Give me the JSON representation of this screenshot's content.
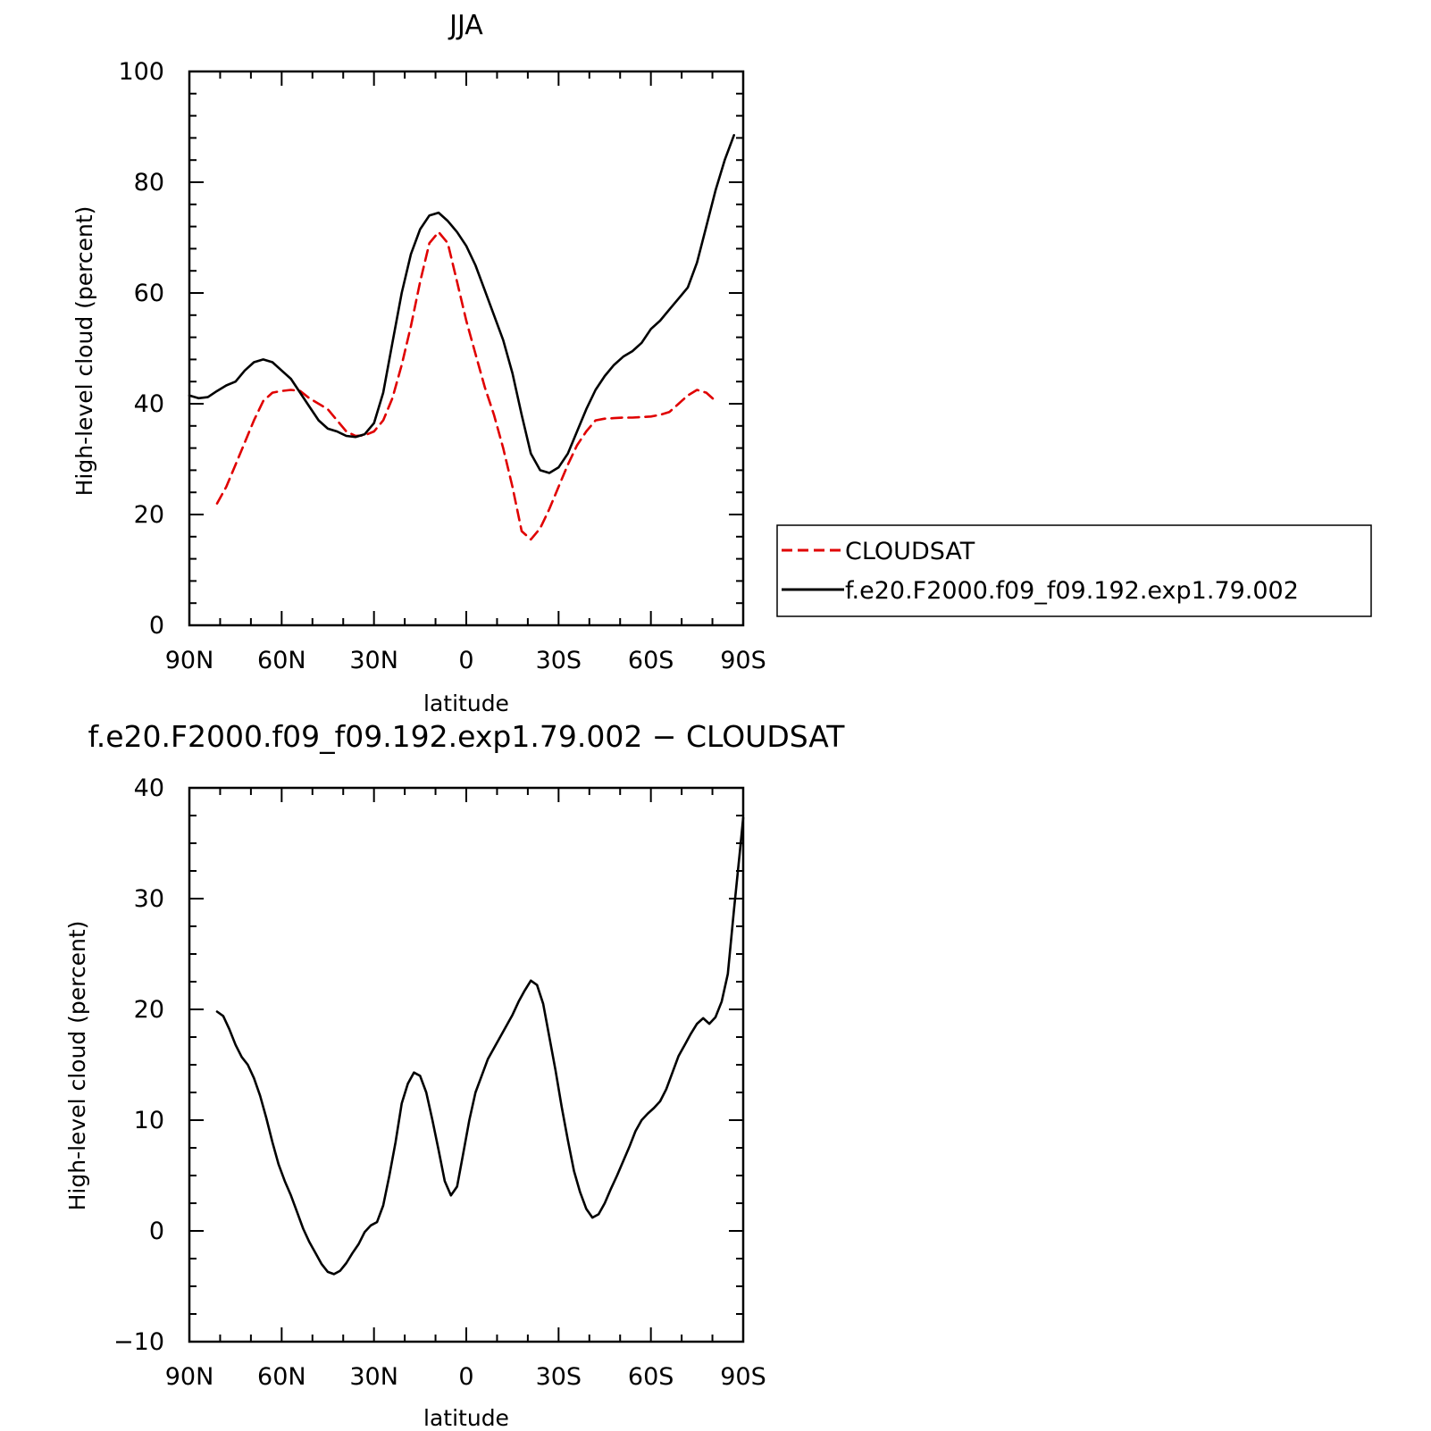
{
  "chart_data": [
    {
      "type": "line",
      "title": "JJA",
      "xlabel": "latitude",
      "ylabel": "High-level cloud (percent)",
      "xlim": [
        90,
        -90
      ],
      "ylim": [
        0,
        100
      ],
      "x_ticks": [
        90,
        60,
        30,
        0,
        -30,
        -60,
        -90
      ],
      "x_tick_labels": [
        "90N",
        "60N",
        "30N",
        "0",
        "30S",
        "60S",
        "90S"
      ],
      "y_ticks": [
        0,
        20,
        40,
        60,
        80,
        100
      ],
      "y_tick_labels": [
        "0",
        "20",
        "40",
        "60",
        "80",
        "100"
      ],
      "legend_position": "outside-right",
      "series": [
        {
          "name": "CLOUDSAT",
          "color": "#e00000",
          "dash": "dashed",
          "points": [
            [
              81,
              22
            ],
            [
              78,
              25
            ],
            [
              75,
              29
            ],
            [
              72,
              33
            ],
            [
              69,
              37
            ],
            [
              66,
              40.5
            ],
            [
              63,
              42
            ],
            [
              60,
              42.3
            ],
            [
              57,
              42.5
            ],
            [
              54,
              42.3
            ],
            [
              51,
              41
            ],
            [
              48,
              40
            ],
            [
              45,
              39
            ],
            [
              42,
              37
            ],
            [
              39,
              35
            ],
            [
              36,
              34.2
            ],
            [
              33,
              34.3
            ],
            [
              30,
              35
            ],
            [
              27,
              37
            ],
            [
              24,
              41
            ],
            [
              21,
              47
            ],
            [
              18,
              54
            ],
            [
              15,
              62
            ],
            [
              12,
              69
            ],
            [
              9,
              71
            ],
            [
              6,
              69
            ],
            [
              3,
              62
            ],
            [
              0,
              55
            ],
            [
              -3,
              49
            ],
            [
              -6,
              43
            ],
            [
              -9,
              38
            ],
            [
              -12,
              32
            ],
            [
              -15,
              25
            ],
            [
              -18,
              17
            ],
            [
              -21,
              15.5
            ],
            [
              -24,
              17.5
            ],
            [
              -27,
              21
            ],
            [
              -30,
              25
            ],
            [
              -33,
              29
            ],
            [
              -36,
              32.5
            ],
            [
              -39,
              35
            ],
            [
              -42,
              37
            ],
            [
              -45,
              37.3
            ],
            [
              -48,
              37.4
            ],
            [
              -51,
              37.5
            ],
            [
              -54,
              37.5
            ],
            [
              -57,
              37.6
            ],
            [
              -60,
              37.7
            ],
            [
              -63,
              38
            ],
            [
              -66,
              38.5
            ],
            [
              -69,
              40
            ],
            [
              -72,
              41.5
            ],
            [
              -75,
              42.5
            ],
            [
              -78,
              42
            ],
            [
              -81,
              40.5
            ]
          ]
        },
        {
          "name": "f.e20.F2000.f09_f09.192.exp1.79.002",
          "color": "#000000",
          "dash": "solid",
          "points": [
            [
              90,
              41.5
            ],
            [
              87,
              41
            ],
            [
              84,
              41.2
            ],
            [
              81,
              42.3
            ],
            [
              78,
              43.3
            ],
            [
              75,
              44
            ],
            [
              72,
              46
            ],
            [
              69,
              47.5
            ],
            [
              66,
              48
            ],
            [
              63,
              47.5
            ],
            [
              60,
              46
            ],
            [
              57,
              44.5
            ],
            [
              54,
              42
            ],
            [
              51,
              39.5
            ],
            [
              48,
              37
            ],
            [
              45,
              35.5
            ],
            [
              42,
              35
            ],
            [
              39,
              34.2
            ],
            [
              36,
              34
            ],
            [
              33,
              34.5
            ],
            [
              30,
              36.5
            ],
            [
              27,
              42
            ],
            [
              24,
              51
            ],
            [
              21,
              60
            ],
            [
              18,
              67
            ],
            [
              15,
              71.5
            ],
            [
              12,
              74
            ],
            [
              9,
              74.5
            ],
            [
              6,
              73
            ],
            [
              3,
              71
            ],
            [
              0,
              68.5
            ],
            [
              -3,
              65
            ],
            [
              -6,
              60.5
            ],
            [
              -9,
              56
            ],
            [
              -12,
              51.5
            ],
            [
              -15,
              45.5
            ],
            [
              -18,
              38
            ],
            [
              -21,
              31
            ],
            [
              -24,
              28
            ],
            [
              -27,
              27.5
            ],
            [
              -30,
              28.5
            ],
            [
              -33,
              31
            ],
            [
              -36,
              35
            ],
            [
              -39,
              39
            ],
            [
              -42,
              42.5
            ],
            [
              -45,
              45
            ],
            [
              -48,
              47
            ],
            [
              -51,
              48.5
            ],
            [
              -54,
              49.5
            ],
            [
              -57,
              51
            ],
            [
              -60,
              53.5
            ],
            [
              -63,
              55
            ],
            [
              -66,
              57
            ],
            [
              -69,
              59
            ],
            [
              -72,
              61
            ],
            [
              -75,
              65.5
            ],
            [
              -78,
              72
            ],
            [
              -81,
              78.5
            ],
            [
              -84,
              84
            ],
            [
              -87,
              88.5
            ]
          ]
        }
      ]
    },
    {
      "type": "line",
      "title": "f.e20.F2000.f09_f09.192.exp1.79.002 − CLOUDSAT",
      "xlabel": "latitude",
      "ylabel": "High-level cloud (percent)",
      "xlim": [
        90,
        -90
      ],
      "ylim": [
        -10,
        40
      ],
      "x_ticks": [
        90,
        60,
        30,
        0,
        -30,
        -60,
        -90
      ],
      "x_tick_labels": [
        "90N",
        "60N",
        "30N",
        "0",
        "30S",
        "60S",
        "90S"
      ],
      "y_ticks": [
        -10,
        0,
        10,
        20,
        30,
        40
      ],
      "y_tick_labels": [
        "−10",
        "0",
        "10",
        "20",
        "30",
        "40"
      ],
      "series": [
        {
          "color": "#000000",
          "dash": "solid",
          "points": [
            [
              81,
              19.8
            ],
            [
              79,
              19.4
            ],
            [
              77,
              18.2
            ],
            [
              75,
              16.8
            ],
            [
              73,
              15.7
            ],
            [
              71,
              15
            ],
            [
              69,
              13.8
            ],
            [
              67,
              12.2
            ],
            [
              65,
              10.2
            ],
            [
              63,
              8
            ],
            [
              61,
              6
            ],
            [
              59,
              4.5
            ],
            [
              57,
              3.2
            ],
            [
              55,
              1.7
            ],
            [
              53,
              0.2
            ],
            [
              51,
              -1
            ],
            [
              49,
              -2
            ],
            [
              47,
              -3
            ],
            [
              45,
              -3.7
            ],
            [
              43,
              -3.9
            ],
            [
              41,
              -3.6
            ],
            [
              39,
              -2.9
            ],
            [
              37,
              -2
            ],
            [
              35,
              -1.2
            ],
            [
              33,
              -0.1
            ],
            [
              31,
              0.5
            ],
            [
              29,
              0.8
            ],
            [
              27,
              2.3
            ],
            [
              25,
              5
            ],
            [
              23,
              8
            ],
            [
              21,
              11.5
            ],
            [
              19,
              13.3
            ],
            [
              17,
              14.3
            ],
            [
              15,
              14
            ],
            [
              13,
              12.5
            ],
            [
              11,
              10
            ],
            [
              9,
              7.3
            ],
            [
              7,
              4.5
            ],
            [
              5,
              3.2
            ],
            [
              3,
              4
            ],
            [
              1,
              7
            ],
            [
              -1,
              10
            ],
            [
              -3,
              12.5
            ],
            [
              -5,
              14
            ],
            [
              -7,
              15.5
            ],
            [
              -9,
              16.5
            ],
            [
              -11,
              17.5
            ],
            [
              -13,
              18.5
            ],
            [
              -15,
              19.5
            ],
            [
              -17,
              20.7
            ],
            [
              -19,
              21.7
            ],
            [
              -21,
              22.6
            ],
            [
              -23,
              22.2
            ],
            [
              -25,
              20.5
            ],
            [
              -27,
              17.5
            ],
            [
              -29,
              14.5
            ],
            [
              -31,
              11.2
            ],
            [
              -33,
              8.2
            ],
            [
              -35,
              5.4
            ],
            [
              -37,
              3.5
            ],
            [
              -39,
              2
            ],
            [
              -41,
              1.2
            ],
            [
              -43,
              1.5
            ],
            [
              -45,
              2.5
            ],
            [
              -47,
              3.8
            ],
            [
              -49,
              5
            ],
            [
              -51,
              6.3
            ],
            [
              -53,
              7.6
            ],
            [
              -55,
              9
            ],
            [
              -57,
              10
            ],
            [
              -59,
              10.6
            ],
            [
              -61,
              11.1
            ],
            [
              -63,
              11.7
            ],
            [
              -65,
              12.8
            ],
            [
              -67,
              14.3
            ],
            [
              -69,
              15.8
            ],
            [
              -71,
              16.8
            ],
            [
              -73,
              17.8
            ],
            [
              -75,
              18.7
            ],
            [
              -77,
              19.2
            ],
            [
              -79,
              18.7
            ],
            [
              -81,
              19.3
            ],
            [
              -83,
              20.7
            ],
            [
              -85,
              23.2
            ],
            [
              -87,
              29
            ],
            [
              -89,
              34.5
            ],
            [
              -90,
              37.3
            ]
          ]
        }
      ]
    }
  ]
}
